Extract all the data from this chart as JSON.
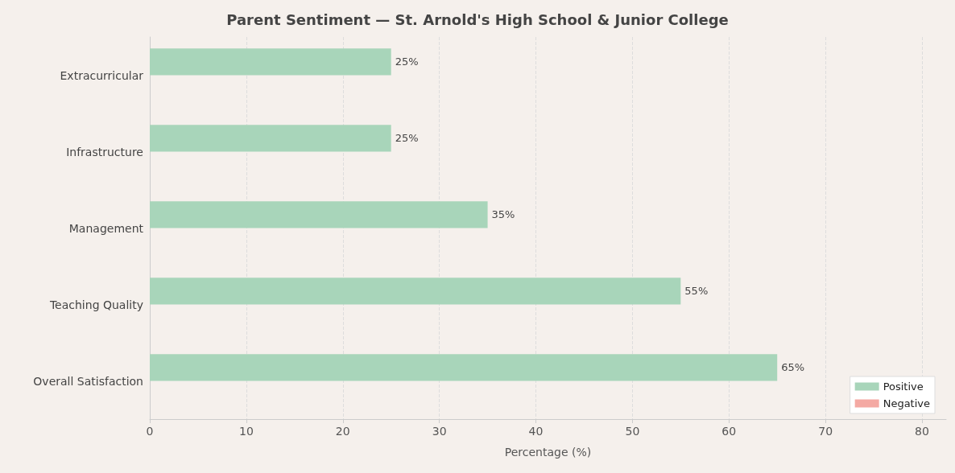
{
  "chart_data": {
    "type": "bar",
    "orientation": "horizontal",
    "title": "Parent Sentiment — St. Arnold's High School & Junior College",
    "xlabel": "Percentage (%)",
    "categories": [
      "Extracurricular",
      "Infrastructure",
      "Management",
      "Teaching Quality",
      "Overall Satisfaction"
    ],
    "series": [
      {
        "name": "Positive",
        "color": "#a8d5ba",
        "values": [
          25,
          25,
          35,
          55,
          65
        ],
        "value_labels": [
          "25%",
          "25%",
          "35%",
          "55%",
          "65%"
        ]
      },
      {
        "name": "Negative",
        "color": "#f4a9a3",
        "values": [
          0,
          0,
          0,
          0,
          0
        ]
      }
    ],
    "xlim": [
      0,
      82.5
    ],
    "xticks": [
      0,
      10,
      20,
      30,
      40,
      50,
      60,
      70,
      80
    ],
    "grid": "x",
    "legend": "bottom right"
  }
}
